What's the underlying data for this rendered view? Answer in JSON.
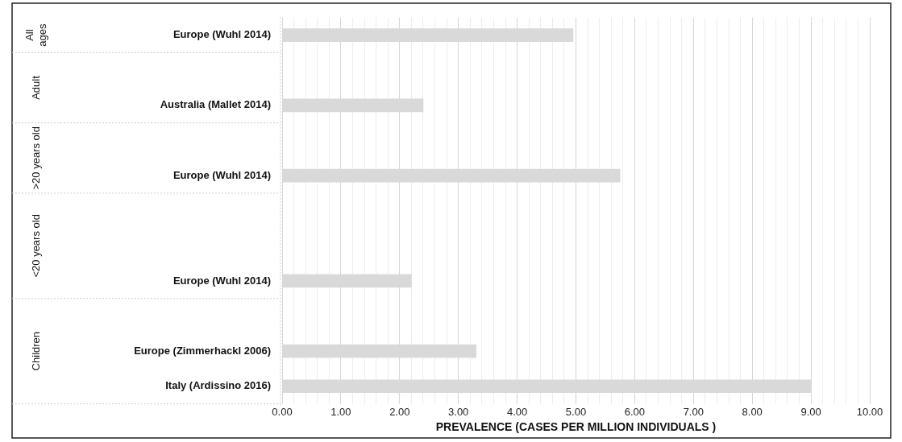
{
  "chart_data": {
    "type": "bar",
    "orientation": "horizontal",
    "categories": [
      "Europe (Wuhl 2014)",
      null,
      "Australia (Mallet 2014)",
      null,
      "Europe (Wuhl 2014)",
      null,
      null,
      "Europe (Wuhl 2014)",
      null,
      "Europe (Zimmerhackl 2006)",
      "Italy (Ardissino 2016)"
    ],
    "values": [
      4.95,
      null,
      2.4,
      null,
      5.75,
      null,
      null,
      2.2,
      null,
      3.3,
      9.0
    ],
    "color": "#d9d9d9",
    "xlabel": "PREVALENCE (CASES PER MILLION INDIVIDUALS )",
    "xlim": [
      0,
      10
    ],
    "xticks": [
      {
        "value": 0,
        "label": "0.00"
      },
      {
        "value": 0.2,
        "label": null
      },
      {
        "value": 0.4,
        "label": null
      },
      {
        "value": 0.6,
        "label": null
      },
      {
        "value": 0.8,
        "label": null
      },
      {
        "value": 1,
        "label": "1.00"
      },
      {
        "value": 1.2,
        "label": null
      },
      {
        "value": 1.4,
        "label": null
      },
      {
        "value": 1.6,
        "label": null
      },
      {
        "value": 1.8,
        "label": null
      },
      {
        "value": 2,
        "label": "2.00"
      },
      {
        "value": 2.2,
        "label": null
      },
      {
        "value": 2.4,
        "label": null
      },
      {
        "value": 2.6,
        "label": null
      },
      {
        "value": 2.8,
        "label": null
      },
      {
        "value": 3,
        "label": "3.00"
      },
      {
        "value": 3.2,
        "label": null
      },
      {
        "value": 3.4,
        "label": null
      },
      {
        "value": 3.6,
        "label": null
      },
      {
        "value": 3.8,
        "label": null
      },
      {
        "value": 4,
        "label": "4.00"
      },
      {
        "value": 4.2,
        "label": null
      },
      {
        "value": 4.4,
        "label": null
      },
      {
        "value": 4.6,
        "label": null
      },
      {
        "value": 4.8,
        "label": null
      },
      {
        "value": 5,
        "label": "5.00"
      },
      {
        "value": 5.2,
        "label": null
      },
      {
        "value": 5.4,
        "label": null
      },
      {
        "value": 5.6,
        "label": null
      },
      {
        "value": 5.8,
        "label": null
      },
      {
        "value": 6,
        "label": "6.00"
      },
      {
        "value": 6.2,
        "label": null
      },
      {
        "value": 6.4,
        "label": null
      },
      {
        "value": 6.6,
        "label": null
      },
      {
        "value": 6.8,
        "label": null
      },
      {
        "value": 7,
        "label": "7.00"
      },
      {
        "value": 7.2,
        "label": null
      },
      {
        "value": 7.4,
        "label": null
      },
      {
        "value": 7.6,
        "label": null
      },
      {
        "value": 7.8,
        "label": null
      },
      {
        "value": 8,
        "label": "8.00"
      },
      {
        "value": 8.2,
        "label": null
      },
      {
        "value": 8.4,
        "label": null
      },
      {
        "value": 8.6,
        "label": null
      },
      {
        "value": 8.8,
        "label": null
      },
      {
        "value": 9,
        "label": "9.00"
      },
      {
        "value": 9.2,
        "label": null
      },
      {
        "value": 9.4,
        "label": null
      },
      {
        "value": 9.6,
        "label": null
      },
      {
        "value": 9.8,
        "label": null
      },
      {
        "value": 10,
        "label": "10.00"
      }
    ],
    "grid": "x",
    "legend": false,
    "annotations": [
      "All ages",
      "Adult",
      ">20 years old",
      "<20 years old",
      "Children"
    ]
  }
}
